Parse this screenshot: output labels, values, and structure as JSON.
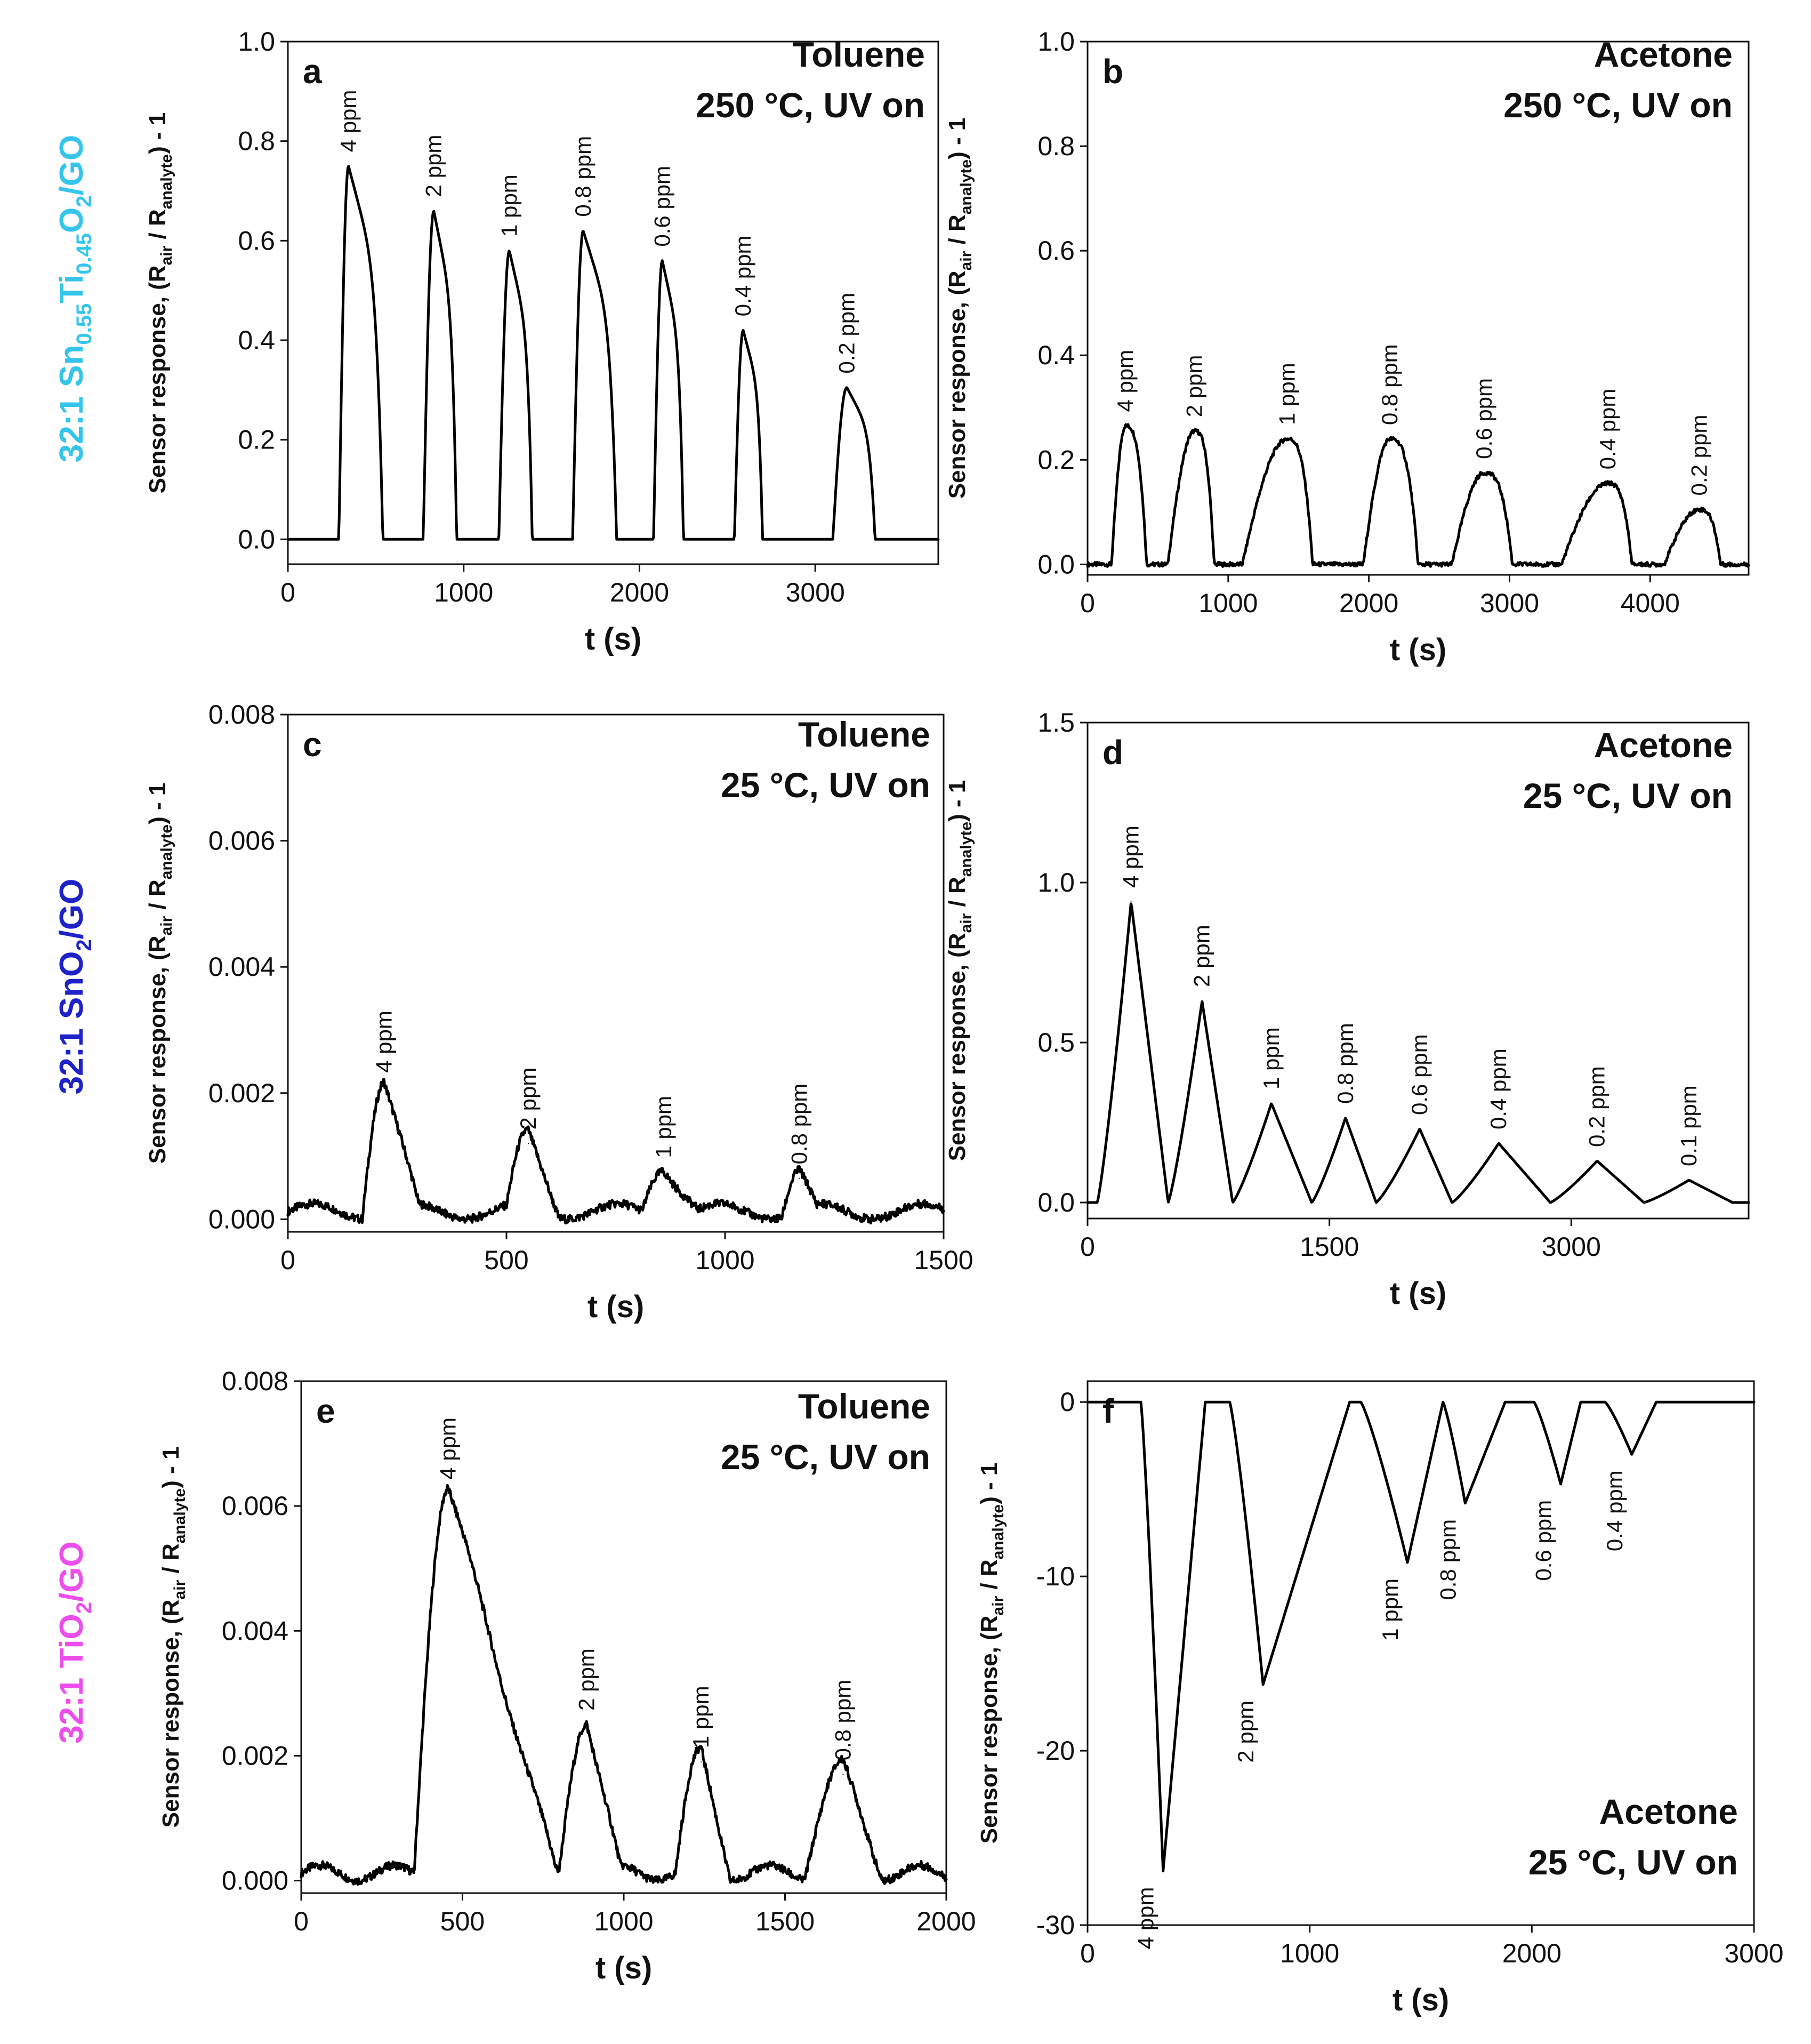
{
  "colors": {
    "row_sntio": "#35C5EC",
    "row_sno2": "#1E22C8",
    "row_tio2": "#EE4DEE",
    "line": "#000000"
  },
  "row_labels": [
    {
      "prefix": "32:1 Sn",
      "sub1": "0.55",
      "mid": "Ti",
      "sub2": "0.45",
      "mid2": "O",
      "sub3": "2",
      "suffix": "/GO",
      "color_key": "row_sntio"
    },
    {
      "prefix": "32:1 SnO",
      "sub1": "2",
      "suffix": "/GO",
      "color_key": "row_sno2"
    },
    {
      "prefix": "32:1 TiO",
      "sub1": "2",
      "suffix": "/GO",
      "color_key": "row_tio2"
    }
  ],
  "y_label": {
    "pre": "Sensor response, (R",
    "sub_a": "air",
    "mid": " / R",
    "sub_b": "analyte",
    "post": ") - 1"
  },
  "chart_data": [
    {
      "id": "a",
      "type": "line",
      "panel_label": "a",
      "analyte": "Toluene",
      "conditions": "250 °C, UV on",
      "xlabel": "t (s)",
      "xlim": [
        0,
        3700
      ],
      "ylim": [
        -0.05,
        1.0
      ],
      "xticks": [
        0,
        1000,
        2000,
        3000
      ],
      "yticks": [
        0.0,
        0.2,
        0.4,
        0.6,
        0.8,
        1.0
      ],
      "ytick_labels": [
        "0.0",
        "0.2",
        "0.4",
        "0.6",
        "0.8",
        "1.0"
      ],
      "peaks": [
        {
          "label": "4 ppm",
          "start": 290,
          "peak_t": 345,
          "value": 0.75,
          "end": 540
        },
        {
          "label": "2 ppm",
          "start": 770,
          "peak_t": 830,
          "value": 0.66,
          "end": 960
        },
        {
          "label": "1 ppm",
          "start": 1200,
          "peak_t": 1260,
          "value": 0.58,
          "end": 1390
        },
        {
          "label": "0.8 ppm",
          "start": 1620,
          "peak_t": 1680,
          "value": 0.62,
          "end": 1870
        },
        {
          "label": "0.6 ppm",
          "start": 2080,
          "peak_t": 2130,
          "value": 0.56,
          "end": 2250
        },
        {
          "label": "0.4 ppm",
          "start": 2540,
          "peak_t": 2590,
          "value": 0.42,
          "end": 2700
        },
        {
          "label": "0.2 ppm",
          "start": 3100,
          "peak_t": 3180,
          "value": 0.305,
          "end": 3340
        }
      ]
    },
    {
      "id": "b",
      "type": "line",
      "panel_label": "b",
      "analyte": "Acetone",
      "conditions": "250 °C, UV on",
      "xlabel": "t (s)",
      "xlim": [
        0,
        4700
      ],
      "ylim": [
        -0.02,
        1.0
      ],
      "xticks": [
        0,
        1000,
        2000,
        3000,
        4000
      ],
      "yticks": [
        0.0,
        0.2,
        0.4,
        0.6,
        0.8,
        1.0
      ],
      "ytick_labels": [
        "0.0",
        "0.2",
        "0.4",
        "0.6",
        "0.8",
        "1.0"
      ],
      "peaks": [
        {
          "label": "4 ppm",
          "start": 170,
          "peak_t": 270,
          "value": 0.265,
          "end": 420
        },
        {
          "label": "2 ppm",
          "start": 570,
          "peak_t": 760,
          "value": 0.255,
          "end": 900
        },
        {
          "label": "1 ppm",
          "start": 1100,
          "peak_t": 1420,
          "value": 0.24,
          "end": 1600
        },
        {
          "label": "0.8 ppm",
          "start": 1960,
          "peak_t": 2150,
          "value": 0.24,
          "end": 2350
        },
        {
          "label": "0.6 ppm",
          "start": 2590,
          "peak_t": 2820,
          "value": 0.175,
          "end": 3020
        },
        {
          "label": "0.4 ppm",
          "start": 3370,
          "peak_t": 3700,
          "value": 0.155,
          "end": 3870
        },
        {
          "label": "0.2 ppm",
          "start": 4100,
          "peak_t": 4350,
          "value": 0.105,
          "end": 4500
        }
      ]
    },
    {
      "id": "c",
      "type": "line",
      "panel_label": "c",
      "analyte": "Toluene",
      "conditions": "25 °C, UV on",
      "xlabel": "t (s)",
      "xlim": [
        0,
        1500
      ],
      "ylim": [
        -0.0002,
        0.008
      ],
      "xticks": [
        0,
        500,
        1000,
        1500
      ],
      "yticks": [
        0.0,
        0.002,
        0.004,
        0.006,
        0.008
      ],
      "ytick_labels": [
        "0.000",
        "0.002",
        "0.004",
        "0.006",
        "0.008"
      ],
      "peaks": [
        {
          "label": "4 ppm",
          "start": 170,
          "peak_t": 220,
          "value": 0.0021,
          "end": 300
        },
        {
          "label": "2 ppm",
          "start": 500,
          "peak_t": 550,
          "value": 0.0012,
          "end": 620
        },
        {
          "label": "1 ppm",
          "start": 810,
          "peak_t": 860,
          "value": 0.00075,
          "end": 940
        },
        {
          "label": "0.8 ppm",
          "start": 1130,
          "peak_t": 1170,
          "value": 0.00065,
          "end": 1210
        }
      ]
    },
    {
      "id": "d",
      "type": "line",
      "panel_label": "d",
      "analyte": "Acetone",
      "conditions": "25 °C, UV on",
      "xlabel": "t (s)",
      "xlim": [
        0,
        4100
      ],
      "ylim": [
        -0.05,
        1.5
      ],
      "xticks": [
        0,
        1500,
        3000
      ],
      "yticks": [
        0.0,
        0.5,
        1.0,
        1.5
      ],
      "ytick_labels": [
        "0.0",
        "0.5",
        "1.0",
        "1.5"
      ],
      "peaks": [
        {
          "label": "4 ppm",
          "start": 60,
          "peak_t": 270,
          "value": 0.94,
          "end": 500
        },
        {
          "label": "2 ppm",
          "start": 500,
          "peak_t": 710,
          "value": 0.63,
          "end": 900
        },
        {
          "label": "1 ppm",
          "start": 900,
          "peak_t": 1140,
          "value": 0.31,
          "end": 1390
        },
        {
          "label": "0.8 ppm",
          "start": 1390,
          "peak_t": 1600,
          "value": 0.265,
          "end": 1790
        },
        {
          "label": "0.6 ppm",
          "start": 1790,
          "peak_t": 2060,
          "value": 0.23,
          "end": 2260
        },
        {
          "label": "0.4 ppm",
          "start": 2260,
          "peak_t": 2550,
          "value": 0.185,
          "end": 2870
        },
        {
          "label": "0.2 ppm",
          "start": 2870,
          "peak_t": 3160,
          "value": 0.13,
          "end": 3450
        },
        {
          "label": "0.1 ppm",
          "start": 3450,
          "peak_t": 3730,
          "value": 0.07,
          "end": 4000
        }
      ]
    },
    {
      "id": "e",
      "type": "line",
      "panel_label": "e",
      "analyte": "Toluene",
      "conditions": "25 °C, UV on",
      "xlabel": "t (s)",
      "xlim": [
        0,
        2000
      ],
      "ylim": [
        -0.0002,
        0.008
      ],
      "xticks": [
        0,
        500,
        1000,
        1500,
        2000
      ],
      "yticks": [
        0.0,
        0.002,
        0.004,
        0.006,
        0.008
      ],
      "ytick_labels": [
        "0.000",
        "0.002",
        "0.004",
        "0.006",
        "0.008"
      ],
      "peaks": [
        {
          "label": "4 ppm",
          "start": 350,
          "peak_t": 455,
          "value": 0.0062,
          "end": 790
        },
        {
          "label": "2 ppm",
          "start": 800,
          "peak_t": 885,
          "value": 0.0025,
          "end": 990
        },
        {
          "label": "1 ppm",
          "start": 1160,
          "peak_t": 1240,
          "value": 0.0019,
          "end": 1330
        },
        {
          "label": "0.8 ppm",
          "start": 1560,
          "peak_t": 1680,
          "value": 0.0017,
          "end": 1800
        }
      ]
    },
    {
      "id": "f",
      "type": "line",
      "panel_label": "f",
      "analyte": "Acetone",
      "conditions": "25 °C, UV on",
      "xlabel": "t (s)",
      "xlim": [
        0,
        3000
      ],
      "ylim": [
        -30,
        1.2
      ],
      "xticks": [
        0,
        1000,
        2000,
        3000
      ],
      "yticks": [
        0,
        -10,
        -20,
        -30
      ],
      "ytick_labels": [
        "0",
        "-10",
        "-20",
        "-30"
      ],
      "peaks": [
        {
          "label": "4 ppm",
          "start": 240,
          "peak_t": 340,
          "value": -26.9,
          "end": 530
        },
        {
          "label": "2 ppm",
          "start": 640,
          "peak_t": 790,
          "value": -16.2,
          "end": 1180
        },
        {
          "label": "1 ppm",
          "start": 1230,
          "peak_t": 1440,
          "value": -9.2,
          "end": 1600
        },
        {
          "label": "0.8 ppm",
          "start": 1600,
          "peak_t": 1700,
          "value": -5.8,
          "end": 1880
        },
        {
          "label": "0.6 ppm",
          "start": 2010,
          "peak_t": 2130,
          "value": -4.7,
          "end": 2220
        },
        {
          "label": "0.4 ppm",
          "start": 2330,
          "peak_t": 2450,
          "value": -3.0,
          "end": 2560
        }
      ]
    }
  ]
}
